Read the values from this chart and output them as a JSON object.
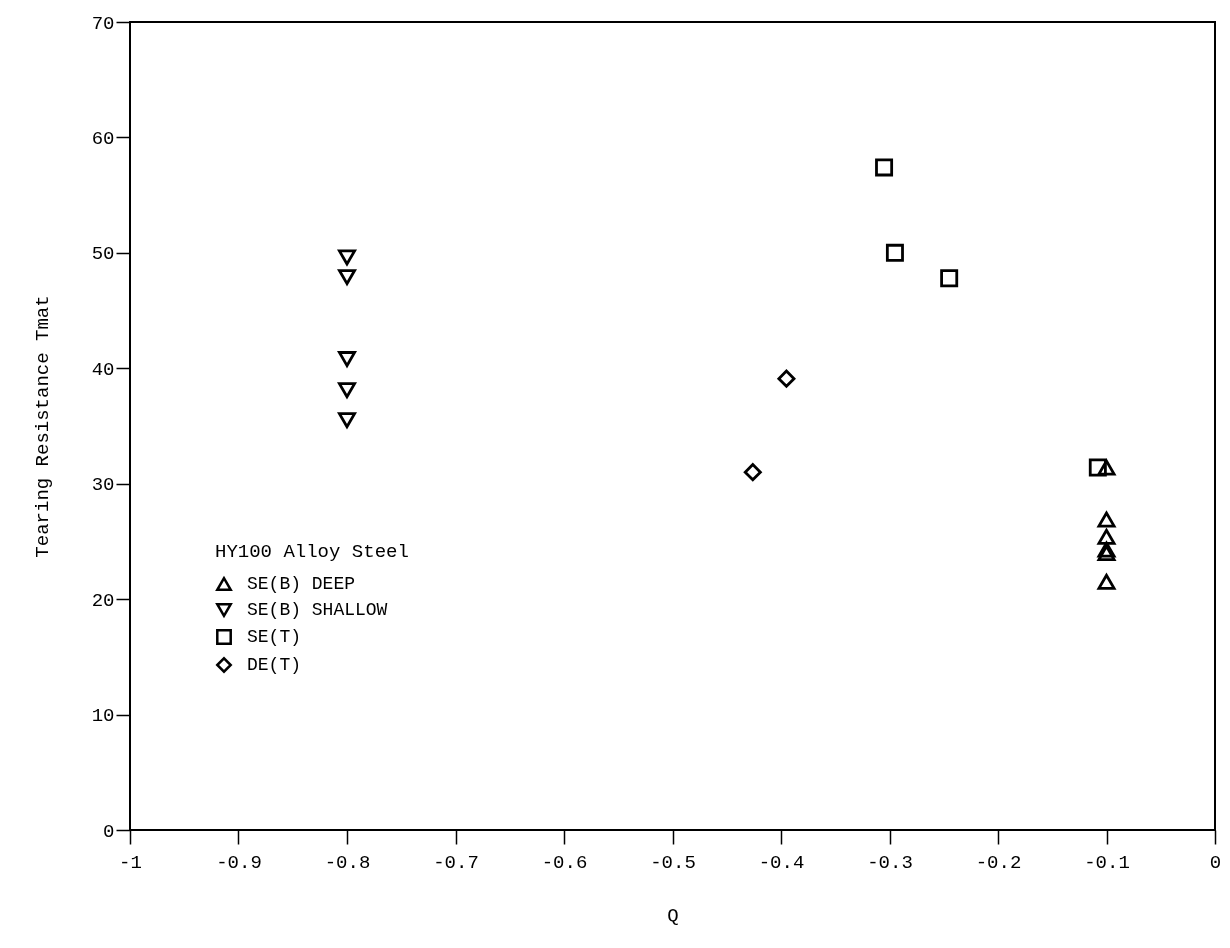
{
  "chart_data": {
    "type": "scatter",
    "xlabel": "Q",
    "ylabel": "Tearing Resistance  Tmat",
    "legend_title": "HY100 Alloy Steel",
    "legend": "bottom left",
    "grid": false,
    "xlim": [
      -1,
      0
    ],
    "xticks": [
      -1,
      -0.9,
      -0.8,
      -0.7,
      -0.6,
      -0.5,
      -0.4,
      -0.3,
      -0.2,
      -0.1,
      0
    ],
    "ylim": [
      0,
      70
    ],
    "yticks": [
      0,
      10,
      20,
      30,
      40,
      50,
      60,
      70
    ],
    "series": [
      {
        "name": "SE(B) DEEP",
        "color": "#000000",
        "marker": "triangle",
        "x": [
          -0.1,
          -0.1,
          -0.1,
          -0.1,
          -0.1,
          -0.1
        ],
        "values": [
          31.4,
          26.9,
          25.4,
          24.3,
          24.0,
          21.5
        ]
      },
      {
        "name": "SE(B) SHALLOW",
        "color": "#000000",
        "marker": "triangle-down",
        "x": [
          -0.8,
          -0.8,
          -0.8,
          -0.8,
          -0.8
        ],
        "values": [
          49.6,
          47.9,
          40.8,
          38.1,
          35.5
        ]
      },
      {
        "name": "SE(T)",
        "color": "#000000",
        "marker": "square",
        "x": [
          -0.305,
          -0.295,
          -0.245,
          -0.108
        ],
        "values": [
          57.4,
          50.0,
          47.8,
          31.4
        ]
      },
      {
        "name": "DE(T)",
        "color": "#000000",
        "marker": "diamond",
        "x": [
          -0.395,
          -0.426
        ],
        "values": [
          39.1,
          31.0
        ]
      }
    ]
  }
}
